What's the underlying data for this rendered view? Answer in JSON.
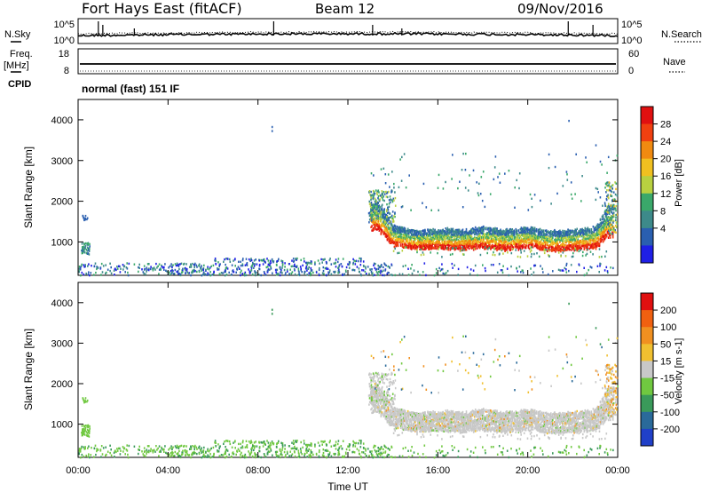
{
  "header": {
    "station": "Fort Hays East (fitACF)",
    "beam": "Beam 12",
    "date": "09/Nov/2016"
  },
  "side_labels": {
    "n_sky": "N.Sky",
    "freq": "Freq.",
    "freq_unit": "[MHz]",
    "cpid": "CPID",
    "n_search": "N.Search",
    "nave": "Nave"
  },
  "cpid_text": "normal (fast) 151 IF",
  "strip1": {
    "left_ticks": [
      "10^5",
      "10^0"
    ],
    "right_ticks": [
      "10^5",
      "10^0"
    ]
  },
  "strip2": {
    "left_ticks": [
      "18",
      "8"
    ],
    "right_ticks": [
      "60",
      "0"
    ]
  },
  "chart_data": [
    {
      "type": "heatmap",
      "name_key": "power",
      "ylabel": "Slant Range [km]",
      "yticks": [
        1000,
        2000,
        3000,
        4000
      ],
      "ylim": [
        180,
        4500
      ],
      "xlim": [
        0,
        24
      ],
      "colorbar": {
        "label": "Power [dB]",
        "ticks": [
          "28",
          "24",
          "20",
          "16",
          "12",
          "8",
          "4"
        ],
        "colors": [
          "#1f1fe6",
          "#2a5fb0",
          "#3d8a8a",
          "#3aa86a",
          "#b8d040",
          "#f0c020",
          "#f08a10",
          "#f04010",
          "#e01010"
        ]
      },
      "bands": [
        {
          "t": 13.3,
          "center": 1620,
          "width": 700
        },
        {
          "t": 14.0,
          "center": 1150,
          "width": 500
        },
        {
          "t": 15.0,
          "center": 1050,
          "width": 450
        },
        {
          "t": 16.0,
          "center": 1080,
          "width": 500
        },
        {
          "t": 17.0,
          "center": 1050,
          "width": 480
        },
        {
          "t": 18.0,
          "center": 1100,
          "width": 520
        },
        {
          "t": 19.0,
          "center": 1050,
          "width": 500
        },
        {
          "t": 20.0,
          "center": 1100,
          "width": 520
        },
        {
          "t": 21.0,
          "center": 1020,
          "width": 480
        },
        {
          "t": 22.0,
          "center": 1050,
          "width": 500
        },
        {
          "t": 23.0,
          "center": 1100,
          "width": 520
        },
        {
          "t": 23.6,
          "center": 1500,
          "width": 800
        }
      ]
    },
    {
      "type": "heatmap",
      "name_key": "velocity",
      "ylabel": "Slant Range [km]",
      "yticks": [
        1000,
        2000,
        3000,
        4000
      ],
      "ylim": [
        180,
        4500
      ],
      "xlim": [
        0,
        24
      ],
      "colorbar": {
        "label": "Velocity [m s-1]",
        "ticks": [
          "200",
          "100",
          "50",
          "15",
          "-15",
          "-50",
          "-100",
          "-200"
        ],
        "colors": [
          "#2040c8",
          "#2a6a9a",
          "#3a9a5a",
          "#70c840",
          "#c8c8c8",
          "#f0c030",
          "#f09020",
          "#f06010",
          "#e01010"
        ]
      }
    }
  ],
  "xaxis": {
    "ticks": [
      "00:00",
      "04:00",
      "08:00",
      "12:00",
      "16:00",
      "20:00",
      "00:00"
    ],
    "label": "Time UT"
  }
}
